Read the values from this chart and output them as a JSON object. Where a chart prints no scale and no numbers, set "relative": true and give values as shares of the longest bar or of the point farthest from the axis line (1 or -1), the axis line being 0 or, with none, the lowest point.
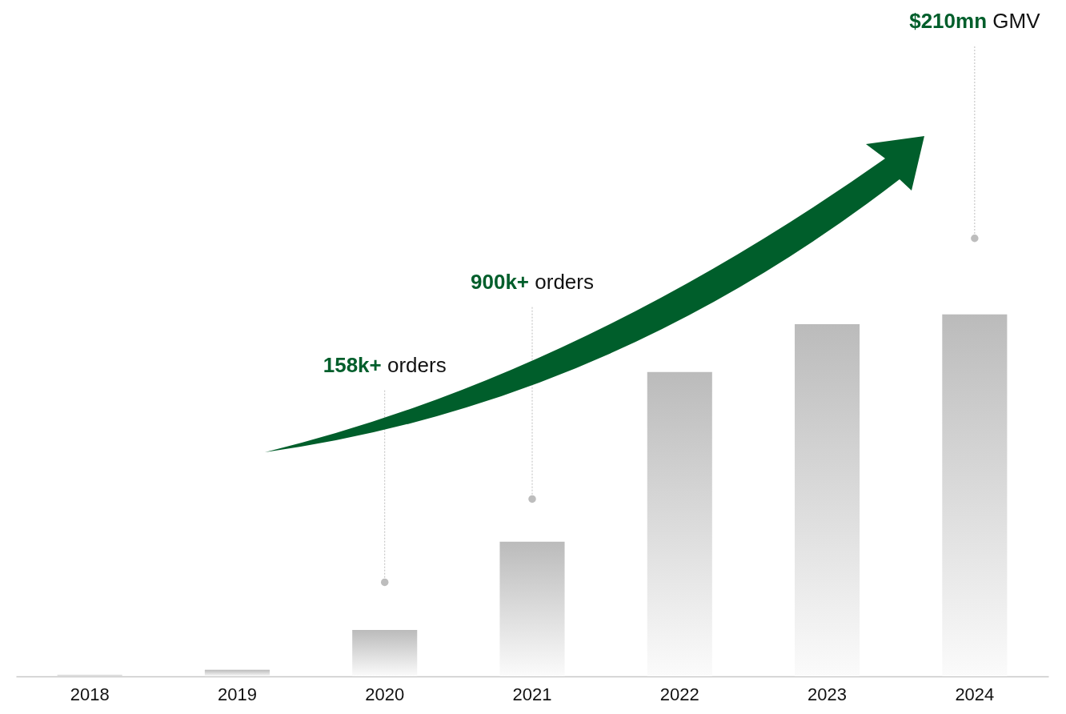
{
  "chart_data": {
    "type": "bar",
    "relative": true,
    "categories": [
      "2018",
      "2019",
      "2020",
      "2021",
      "2022",
      "2023",
      "2024"
    ],
    "values": [
      0.004,
      0.018,
      0.128,
      0.372,
      0.841,
      0.973,
      1
    ],
    "color": "#bbbbbb",
    "annotations": [
      "158k+ orders",
      "900k+ orders",
      "$210mn GMV"
    ]
  }
}
